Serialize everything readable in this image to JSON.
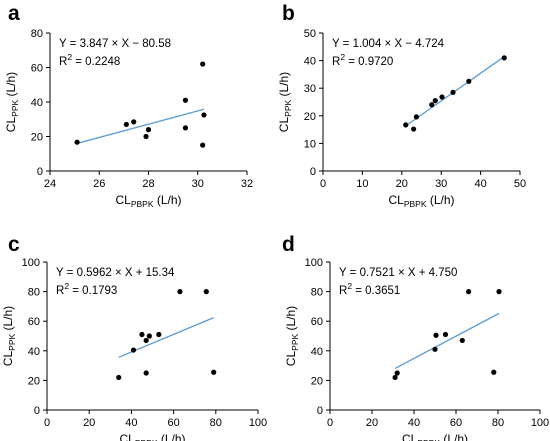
{
  "chart_data": [
    {
      "panel": "a",
      "type": "scatter",
      "xlabel": "CL",
      "xlabel_sub": "PBPK",
      "xlabel_unit": " (L/h)",
      "ylabel": "CL",
      "ylabel_sub": "PPK",
      "ylabel_unit": " (L/h)",
      "xlim": [
        24,
        32
      ],
      "ylim": [
        0,
        80
      ],
      "xticks": [
        24,
        26,
        28,
        30,
        32
      ],
      "yticks": [
        0,
        20,
        40,
        60,
        80
      ],
      "equation": "Y = 3.847 × X − 80.58",
      "r2_label": "R",
      "r2_value": " = 0.2248",
      "points": [
        [
          25.1,
          16.7
        ],
        [
          27.1,
          27
        ],
        [
          27.4,
          28.5
        ],
        [
          27.9,
          20
        ],
        [
          28.0,
          24
        ],
        [
          29.5,
          41
        ],
        [
          29.5,
          25
        ],
        [
          30.2,
          62
        ],
        [
          30.2,
          15
        ],
        [
          30.25,
          32.5
        ]
      ],
      "fit": {
        "slope": 3.847,
        "intercept": -80.58,
        "x_range": [
          25.1,
          30.25
        ],
        "color": "#5b9bd5"
      }
    },
    {
      "panel": "b",
      "type": "scatter",
      "xlabel": "CL",
      "xlabel_sub": "PBPK",
      "xlabel_unit": " (L/h)",
      "ylabel": "CL",
      "ylabel_sub": "PPK",
      "ylabel_unit": " (L/h)",
      "xlim": [
        0,
        50
      ],
      "ylim": [
        0,
        50
      ],
      "xticks": [
        0,
        10,
        20,
        30,
        40,
        50
      ],
      "yticks": [
        0,
        10,
        20,
        30,
        40,
        50
      ],
      "equation": "Y = 1.004 × X − 4.724",
      "r2_label": "R",
      "r2_value": " = 0.9720",
      "points": [
        [
          21,
          16.7
        ],
        [
          23,
          15.2
        ],
        [
          23.7,
          19.6
        ],
        [
          27.6,
          24
        ],
        [
          28.5,
          25.5
        ],
        [
          30.2,
          26.8
        ],
        [
          33,
          28.5
        ],
        [
          37,
          32.5
        ],
        [
          46,
          41
        ]
      ],
      "fit": {
        "slope": 1.004,
        "intercept": -4.724,
        "x_range": [
          21,
          46
        ],
        "color": "#5b9bd5"
      }
    },
    {
      "panel": "c",
      "type": "scatter",
      "xlabel": "CL",
      "xlabel_sub": "PBPK",
      "xlabel_unit": " (L/h)",
      "ylabel": "CL",
      "ylabel_sub": "PPK",
      "ylabel_unit": " (L/h)",
      "xlim": [
        0,
        100
      ],
      "ylim": [
        0,
        100
      ],
      "xticks": [
        0,
        20,
        40,
        60,
        80,
        100
      ],
      "yticks": [
        0,
        20,
        40,
        60,
        80,
        100
      ],
      "equation": "Y = 0.5962 × X + 15.34",
      "r2_label": "R",
      "r2_value": " = 0.1793",
      "points": [
        [
          34,
          22
        ],
        [
          41,
          40.5
        ],
        [
          45,
          51
        ],
        [
          47,
          47
        ],
        [
          47,
          25
        ],
        [
          48.5,
          50
        ],
        [
          53,
          51
        ],
        [
          63,
          80
        ],
        [
          75.5,
          80
        ],
        [
          79,
          25.5
        ]
      ],
      "fit": {
        "slope": 0.5962,
        "intercept": 15.34,
        "x_range": [
          34,
          79
        ],
        "color": "#5b9bd5"
      }
    },
    {
      "panel": "d",
      "type": "scatter",
      "xlabel": "CL",
      "xlabel_sub": "PBPK",
      "xlabel_unit": " (L/h)",
      "ylabel": "CL",
      "ylabel_sub": "PPK",
      "ylabel_unit": " (L/h)",
      "xlim": [
        0,
        100
      ],
      "ylim": [
        0,
        100
      ],
      "xticks": [
        0,
        20,
        40,
        60,
        80,
        100
      ],
      "yticks": [
        0,
        20,
        40,
        60,
        80,
        100
      ],
      "equation": "Y = 0.7521 × X + 4.750",
      "r2_label": "R",
      "r2_value": " = 0.3651",
      "points": [
        [
          31,
          22
        ],
        [
          32,
          25
        ],
        [
          50,
          41
        ],
        [
          50.5,
          50.5
        ],
        [
          55,
          51
        ],
        [
          63,
          47
        ],
        [
          66,
          80
        ],
        [
          78,
          25.5
        ],
        [
          80.5,
          80
        ]
      ],
      "fit": {
        "slope": 0.7521,
        "intercept": 4.75,
        "x_range": [
          31,
          80.5
        ],
        "color": "#5b9bd5"
      }
    }
  ]
}
